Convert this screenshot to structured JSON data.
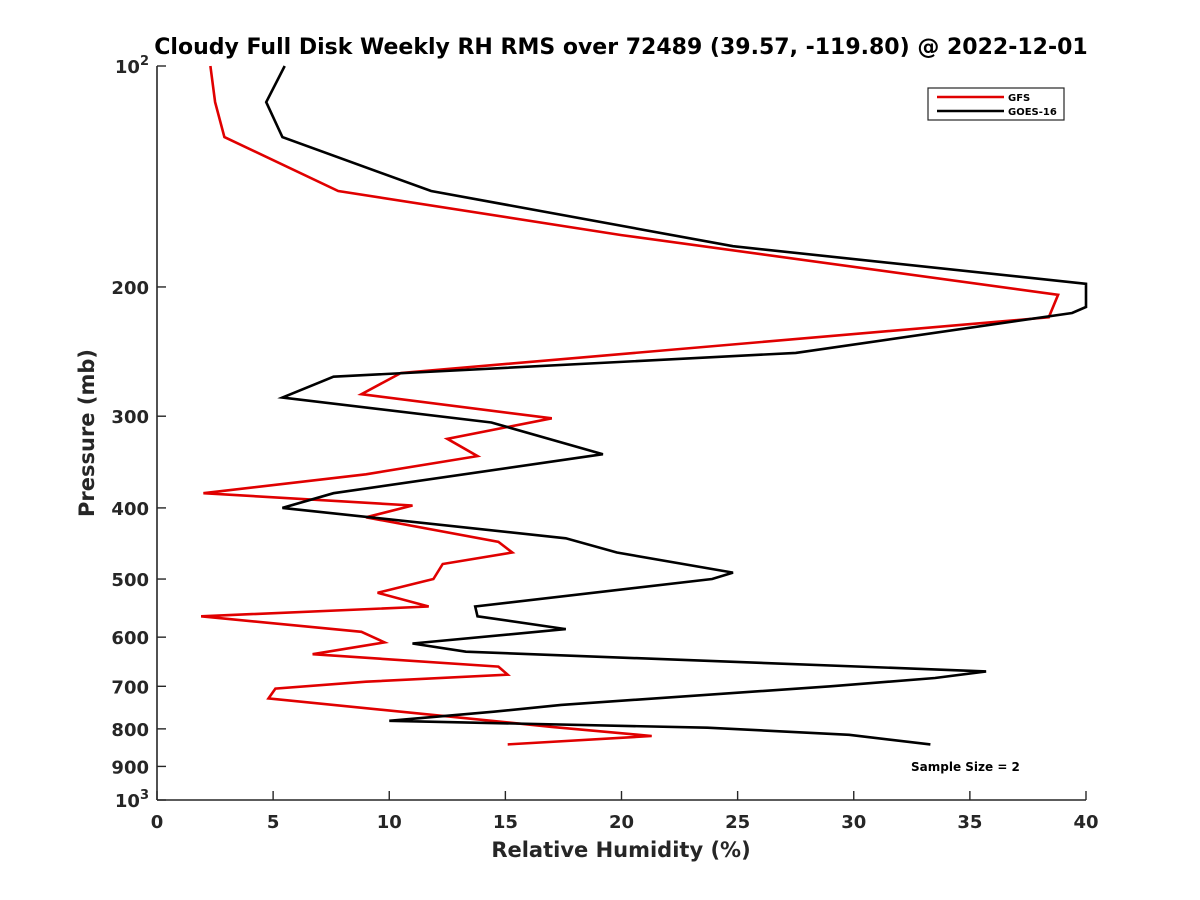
{
  "chart_data": {
    "type": "line",
    "title": "Cloudy Full Disk Weekly RH RMS over 72489 (39.57, -119.80) @ 2022-12-01",
    "xlabel": "Relative Humidity (%)",
    "ylabel": "Pressure (mb)",
    "xlim": [
      0,
      40
    ],
    "ylim": [
      100,
      1000
    ],
    "yscale": "log",
    "y_reversed": true,
    "grid": false,
    "legend_position": "top-right",
    "x_ticks": [
      "0",
      "5",
      "10",
      "15",
      "20",
      "25",
      "30",
      "35",
      "40"
    ],
    "y_ticks": [
      {
        "value": 100,
        "label": "10",
        "exp": "2"
      },
      {
        "value": 200,
        "label": "200"
      },
      {
        "value": 300,
        "label": "300"
      },
      {
        "value": 400,
        "label": "400"
      },
      {
        "value": 500,
        "label": "500"
      },
      {
        "value": 600,
        "label": "600"
      },
      {
        "value": 700,
        "label": "700"
      },
      {
        "value": 800,
        "label": "800"
      },
      {
        "value": 900,
        "label": "900"
      },
      {
        "value": 1000,
        "label": "10",
        "exp": "3"
      }
    ],
    "annotation": "Sample Size = 2",
    "series": [
      {
        "name": "GFS",
        "color": "#e00000",
        "points": [
          [
            2.3,
            100
          ],
          [
            2.5,
            112
          ],
          [
            2.9,
            125
          ],
          [
            7.8,
            148
          ],
          [
            20.0,
            170
          ],
          [
            38.8,
            205
          ],
          [
            38.4,
            220
          ],
          [
            10.5,
            262
          ],
          [
            8.8,
            280
          ],
          [
            17.0,
            302
          ],
          [
            12.5,
            322
          ],
          [
            13.8,
            340
          ],
          [
            9.0,
            360
          ],
          [
            2.0,
            382
          ],
          [
            11.0,
            397
          ],
          [
            9.0,
            412
          ],
          [
            14.7,
            445
          ],
          [
            15.3,
            460
          ],
          [
            12.3,
            477
          ],
          [
            11.9,
            500
          ],
          [
            9.5,
            522
          ],
          [
            11.7,
            545
          ],
          [
            1.9,
            562
          ],
          [
            8.8,
            590
          ],
          [
            9.8,
            610
          ],
          [
            6.7,
            633
          ],
          [
            14.7,
            658
          ],
          [
            15.1,
            675
          ],
          [
            9.0,
            690
          ],
          [
            5.1,
            705
          ],
          [
            4.8,
            727
          ],
          [
            17.0,
            795
          ],
          [
            21.3,
            818
          ],
          [
            15.1,
            840
          ]
        ]
      },
      {
        "name": "GOES-16",
        "color": "#000000",
        "points": [
          [
            5.5,
            100
          ],
          [
            4.7,
            112
          ],
          [
            5.4,
            125
          ],
          [
            11.8,
            148
          ],
          [
            24.8,
            176
          ],
          [
            40.0,
            198
          ],
          [
            40.0,
            213
          ],
          [
            39.4,
            217
          ],
          [
            27.5,
            246
          ],
          [
            7.6,
            265
          ],
          [
            5.4,
            283
          ],
          [
            14.4,
            306
          ],
          [
            19.2,
            338
          ],
          [
            7.6,
            382
          ],
          [
            5.4,
            400
          ],
          [
            17.6,
            440
          ],
          [
            19.8,
            460
          ],
          [
            24.8,
            490
          ],
          [
            23.9,
            500
          ],
          [
            13.7,
            545
          ],
          [
            13.8,
            562
          ],
          [
            17.6,
            585
          ],
          [
            11.0,
            612
          ],
          [
            13.3,
            628
          ],
          [
            35.7,
            668
          ],
          [
            33.5,
            682
          ],
          [
            29.0,
            700
          ],
          [
            17.4,
            742
          ],
          [
            14.5,
            758
          ],
          [
            10.0,
            780
          ],
          [
            23.7,
            797
          ],
          [
            29.8,
            815
          ],
          [
            33.3,
            840
          ]
        ]
      }
    ]
  }
}
